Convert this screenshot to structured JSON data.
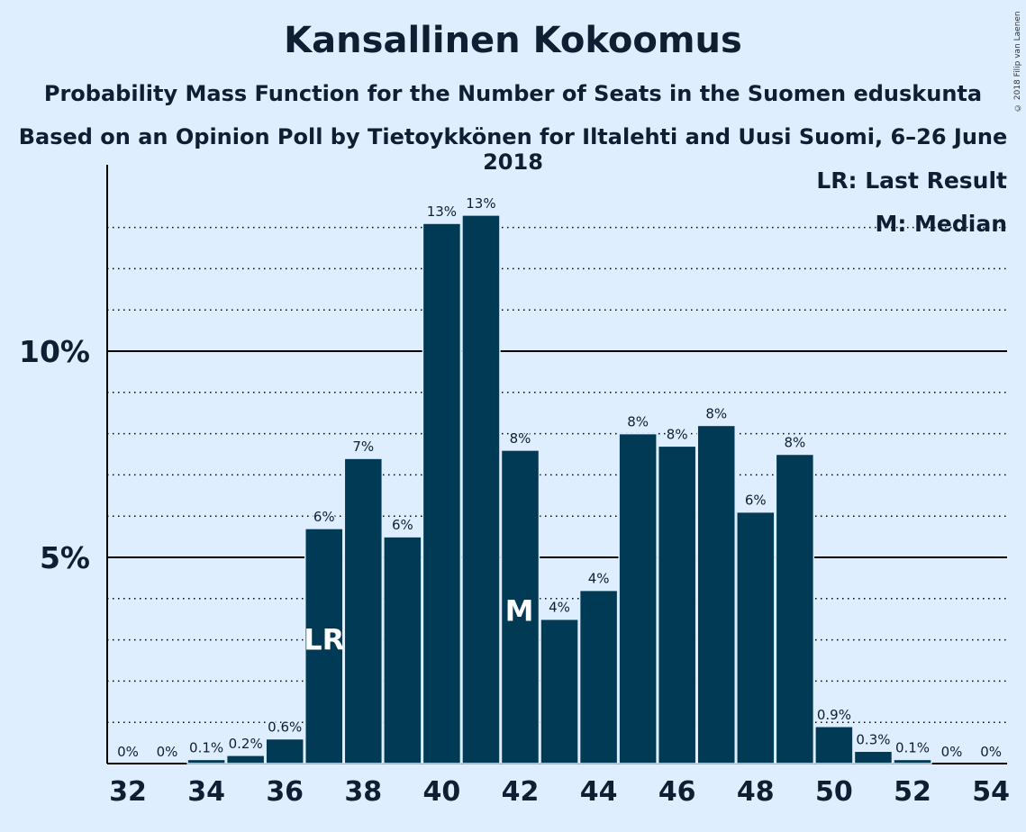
{
  "title": "Kansallinen Kokoomus",
  "subtitle": "Probability Mass Function for the Number of Seats in the Suomen eduskunta",
  "subtitle2": "Based on an Opinion Poll by Tietoykkönen for Iltalehti and Uusi Suomi, 6–26 June 2018",
  "copyright": "© 2018 Filip van Laenen",
  "legend": {
    "lr": "LR: Last Result",
    "median": "M: Median"
  },
  "colors": {
    "background": "#dfeeff",
    "bar": "#003a55",
    "text": "#0e1e33"
  },
  "chart_data": {
    "type": "bar",
    "x": [
      32,
      33,
      34,
      35,
      36,
      37,
      38,
      39,
      40,
      41,
      42,
      43,
      44,
      45,
      46,
      47,
      48,
      49,
      50,
      51,
      52,
      53,
      54
    ],
    "values": [
      0.0,
      0.0,
      0.1,
      0.2,
      0.6,
      5.7,
      7.4,
      5.5,
      13.1,
      13.3,
      7.6,
      3.5,
      4.2,
      8.0,
      7.7,
      8.2,
      6.1,
      7.5,
      0.9,
      0.3,
      0.1,
      0.0,
      0.0
    ],
    "data_labels": [
      "0%",
      "0%",
      "0.1%",
      "0.2%",
      "0.6%",
      "6%",
      "7%",
      "6%",
      "13%",
      "13%",
      "8%",
      "4%",
      "4%",
      "8%",
      "8%",
      "8%",
      "6%",
      "8%",
      "0.9%",
      "0.3%",
      "0.1%",
      "0%",
      "0%"
    ],
    "x_ticks": [
      32,
      34,
      36,
      38,
      40,
      42,
      44,
      46,
      48,
      50,
      52,
      54
    ],
    "y_ticks": [
      {
        "value": 5,
        "label": "5%"
      },
      {
        "value": 10,
        "label": "10%"
      }
    ],
    "ylim": [
      0,
      14
    ],
    "last_result": {
      "seat": 37,
      "label": "LR"
    },
    "median": {
      "seat": 42,
      "label": "M"
    },
    "grid": "dotted every 1%, solid at 5% and 10%",
    "legend_position": "top-right"
  }
}
